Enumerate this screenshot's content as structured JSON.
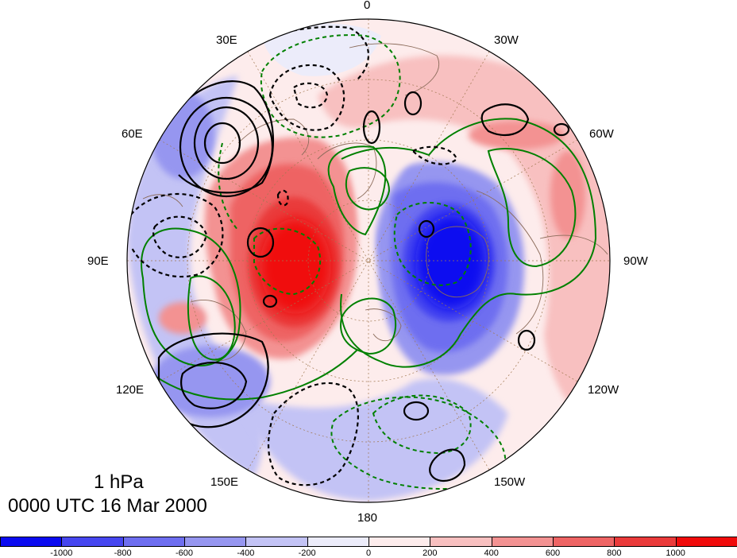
{
  "map": {
    "projection": "north-polar-stereographic",
    "longitude_labels": [
      {
        "key": "0",
        "text": "0"
      },
      {
        "key": "30W",
        "text": "30W"
      },
      {
        "key": "60W",
        "text": "60W"
      },
      {
        "key": "90W",
        "text": "90W"
      },
      {
        "key": "120W",
        "text": "120W"
      },
      {
        "key": "150W",
        "text": "150W"
      },
      {
        "key": "180",
        "text": "180"
      },
      {
        "key": "150E",
        "text": "150E"
      },
      {
        "key": "120E",
        "text": "120E"
      },
      {
        "key": "90E",
        "text": "90E"
      },
      {
        "key": "60E",
        "text": "60E"
      },
      {
        "key": "30E",
        "text": "30E"
      }
    ],
    "caption": {
      "level": "1 hPa",
      "time": "0000 UTC 16 Mar 2000"
    },
    "colors": {
      "negative": "#0000f0",
      "positive": "#f00000",
      "coastline": "#8b6b5a",
      "green_contour": "#008000",
      "black_contour": "#000000"
    }
  },
  "colorbar": {
    "colors": [
      "#0a0af0",
      "#4646f0",
      "#6e6ef0",
      "#9696f0",
      "#c3c3f5",
      "#ececfa",
      "#fdecec",
      "#f8c0c0",
      "#f39292",
      "#ee6464",
      "#ea3a3a",
      "#f00a0a"
    ],
    "tick_labels": [
      "-1000",
      "-800",
      "-600",
      "-400",
      "-200",
      "0",
      "200",
      "400",
      "600",
      "800",
      "1000"
    ]
  }
}
